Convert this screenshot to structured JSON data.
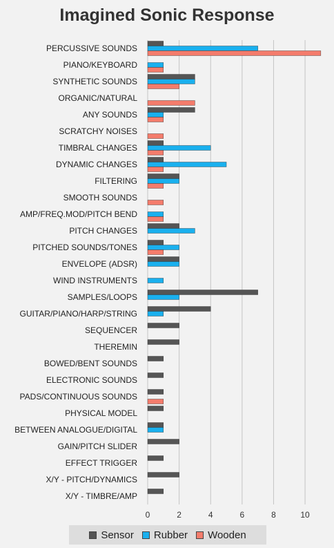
{
  "chart_data": {
    "type": "bar",
    "orientation": "horizontal",
    "title": "Imagined Sonic Response",
    "categories": [
      "PERCUSSIVE SOUNDS",
      "PIANO/KEYBOARD",
      "SYNTHETIC SOUNDS",
      "ORGANIC/NATURAL",
      "ANY SOUNDS",
      "SCRATCHY NOISES",
      "TIMBRAL CHANGES",
      "DYNAMIC CHANGES",
      "FILTERING",
      "SMOOTH SOUNDS",
      "AMP/FREQ.MOD/PITCH BEND",
      "PITCH CHANGES",
      "PITCHED SOUNDS/TONES",
      "ENVELOPE (ADSR)",
      "WIND INSTRUMENTS",
      "SAMPLES/LOOPS",
      "GUITAR/PIANO/HARP/STRING",
      "SEQUENCER",
      "THEREMIN",
      "BOWED/BENT SOUNDS",
      "ELECTRONIC SOUNDS",
      "PADS/CONTINUOUS SOUNDS",
      "PHYSICAL MODEL",
      "BETWEEN ANALOGUE/DIGITAL",
      "GAIN/PITCH SLIDER",
      "EFFECT TRIGGER",
      "X/Y - PITCH/DYNAMICS",
      "X/Y - TIMBRE/AMP"
    ],
    "series": [
      {
        "name": "Sensor",
        "color": "#555555",
        "values": [
          1,
          0,
          3,
          0,
          3,
          0,
          1,
          1,
          2,
          0,
          0,
          2,
          1,
          2,
          0,
          7,
          4,
          2,
          2,
          1,
          1,
          1,
          1,
          1,
          2,
          1,
          2,
          1
        ]
      },
      {
        "name": "Rubber",
        "color": "#1ab0ee",
        "values": [
          7,
          1,
          3,
          0,
          1,
          0,
          4,
          5,
          2,
          0,
          1,
          3,
          2,
          2,
          1,
          2,
          1,
          0,
          0,
          0,
          0,
          0,
          0,
          1,
          0,
          0,
          0,
          0
        ]
      },
      {
        "name": "Wooden",
        "color": "#f47c6c",
        "values": [
          11,
          1,
          2,
          3,
          1,
          1,
          1,
          1,
          1,
          1,
          1,
          0,
          1,
          0,
          0,
          0,
          0,
          0,
          0,
          0,
          0,
          1,
          0,
          0,
          0,
          0,
          0,
          0
        ]
      }
    ],
    "xlim": [
      0,
      11.4
    ],
    "xticks": [
      0,
      2,
      4,
      6,
      8,
      10
    ],
    "grid": true,
    "legend_position": "bottom"
  }
}
